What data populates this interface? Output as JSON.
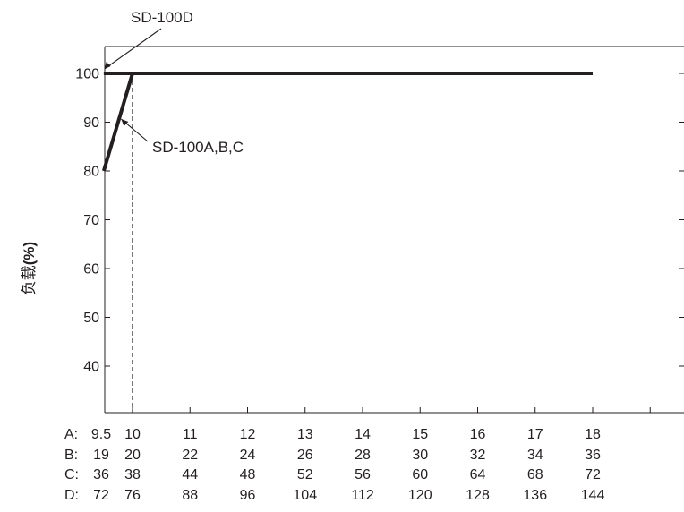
{
  "chart_data": {
    "type": "line",
    "ylabel_cjk": "负载",
    "ylabel_unit": "(%)",
    "ylim": [
      30,
      105
    ],
    "y_ticks": [
      40,
      50,
      60,
      70,
      80,
      90,
      100
    ],
    "grid": false,
    "x_row_prefixes": [
      "A:",
      "B:",
      "C:",
      "D:"
    ],
    "x_columns": [
      [
        "9.5",
        "19",
        "36",
        "72"
      ],
      [
        "10",
        "20",
        "38",
        "76"
      ],
      [
        "11",
        "22",
        "44",
        "88"
      ],
      [
        "12",
        "24",
        "48",
        "96"
      ],
      [
        "13",
        "26",
        "52",
        "104"
      ],
      [
        "14",
        "28",
        "56",
        "112"
      ],
      [
        "15",
        "30",
        "60",
        "120"
      ],
      [
        "16",
        "32",
        "64",
        "128"
      ],
      [
        "17",
        "34",
        "68",
        "136"
      ],
      [
        "18",
        "36",
        "72",
        "144"
      ]
    ],
    "xlim": [
      9.5,
      19.5
    ],
    "series": [
      {
        "name": "SD-100A,B,C",
        "points": [
          [
            9.5,
            80
          ],
          [
            10,
            100
          ],
          [
            18,
            100
          ]
        ]
      },
      {
        "name": "SD-100D",
        "points": [
          [
            9.5,
            100
          ],
          [
            18,
            100
          ]
        ]
      }
    ],
    "reference_line_x": 10,
    "annotations": [
      {
        "text": "SD-100D",
        "points_to": [
          9.7,
          100
        ]
      },
      {
        "text": "SD-100A,B,C",
        "points_to": [
          9.85,
          91
        ]
      }
    ],
    "colors": {
      "line": "#231f20",
      "axis": "#231f20"
    }
  }
}
